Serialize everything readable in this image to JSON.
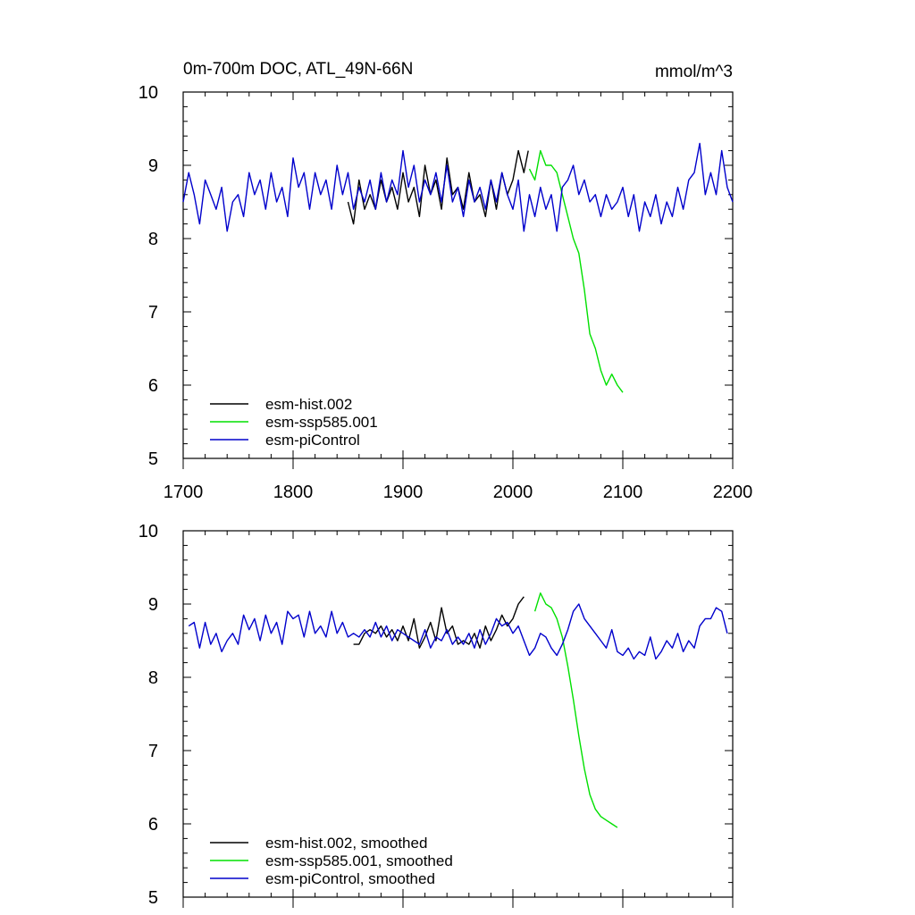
{
  "chart_data": [
    {
      "type": "line",
      "title": "0m-700m DOC, ATL_49N-66N",
      "units": "mmol/m^3",
      "xlim": [
        1700,
        2200
      ],
      "ylim": [
        5,
        10
      ],
      "xticks": [
        1700,
        1800,
        1900,
        2000,
        2100,
        2200
      ],
      "yticks": [
        5,
        6,
        7,
        8,
        9,
        10
      ],
      "x_tick_labels": [
        "1700",
        "1800",
        "1900",
        "2000",
        "2100",
        "2200"
      ],
      "y_tick_labels": [
        "5",
        "6",
        "7",
        "8",
        "9",
        "10"
      ],
      "legend_position": "bottom-left",
      "series": [
        {
          "name": "esm-hist.002",
          "color": "#000000",
          "x": [
            1850,
            1855,
            1860,
            1865,
            1870,
            1875,
            1880,
            1885,
            1890,
            1895,
            1900,
            1905,
            1910,
            1915,
            1920,
            1925,
            1930,
            1935,
            1940,
            1945,
            1950,
            1955,
            1960,
            1965,
            1970,
            1975,
            1980,
            1985,
            1990,
            1995,
            2000,
            2005,
            2010,
            2014
          ],
          "values": [
            8.5,
            8.2,
            8.8,
            8.4,
            8.6,
            8.4,
            8.8,
            8.5,
            8.7,
            8.4,
            8.9,
            8.5,
            8.7,
            8.3,
            9.0,
            8.6,
            8.8,
            8.4,
            9.1,
            8.6,
            8.7,
            8.4,
            8.9,
            8.5,
            8.6,
            8.3,
            8.8,
            8.4,
            8.9,
            8.6,
            8.8,
            9.2,
            8.9,
            9.2
          ]
        },
        {
          "name": "esm-ssp585.001",
          "color": "#00e000",
          "x": [
            2015,
            2020,
            2025,
            2030,
            2035,
            2040,
            2045,
            2050,
            2055,
            2060,
            2065,
            2070,
            2075,
            2080,
            2085,
            2090,
            2095,
            2100
          ],
          "values": [
            8.95,
            8.8,
            9.2,
            9.0,
            9.0,
            8.9,
            8.6,
            8.3,
            8.0,
            7.8,
            7.3,
            6.7,
            6.5,
            6.2,
            6.0,
            6.15,
            6.0,
            5.9
          ]
        },
        {
          "name": "esm-piControl",
          "color": "#0000cc",
          "x": [
            1700,
            1705,
            1710,
            1715,
            1720,
            1725,
            1730,
            1735,
            1740,
            1745,
            1750,
            1755,
            1760,
            1765,
            1770,
            1775,
            1780,
            1785,
            1790,
            1795,
            1800,
            1805,
            1810,
            1815,
            1820,
            1825,
            1830,
            1835,
            1840,
            1845,
            1850,
            1855,
            1860,
            1865,
            1870,
            1875,
            1880,
            1885,
            1890,
            1895,
            1900,
            1905,
            1910,
            1915,
            1920,
            1925,
            1930,
            1935,
            1940,
            1945,
            1950,
            1955,
            1960,
            1965,
            1970,
            1975,
            1980,
            1985,
            1990,
            1995,
            2000,
            2005,
            2010,
            2015,
            2020,
            2025,
            2030,
            2035,
            2040,
            2045,
            2050,
            2055,
            2060,
            2065,
            2070,
            2075,
            2080,
            2085,
            2090,
            2095,
            2100,
            2105,
            2110,
            2115,
            2120,
            2125,
            2130,
            2135,
            2140,
            2145,
            2150,
            2155,
            2160,
            2165,
            2170,
            2175,
            2180,
            2185,
            2190,
            2195,
            2200
          ],
          "values": [
            8.5,
            8.9,
            8.6,
            8.2,
            8.8,
            8.6,
            8.4,
            8.7,
            8.1,
            8.5,
            8.6,
            8.3,
            8.9,
            8.6,
            8.8,
            8.4,
            8.9,
            8.5,
            8.7,
            8.3,
            9.1,
            8.7,
            8.9,
            8.4,
            8.9,
            8.6,
            8.8,
            8.4,
            9.0,
            8.6,
            8.9,
            8.4,
            8.7,
            8.5,
            8.8,
            8.4,
            8.9,
            8.5,
            8.8,
            8.6,
            9.2,
            8.7,
            9.0,
            8.5,
            8.8,
            8.6,
            8.9,
            8.5,
            9.0,
            8.5,
            8.7,
            8.3,
            8.8,
            8.5,
            8.7,
            8.4,
            8.8,
            8.5,
            8.9,
            8.6,
            8.4,
            8.8,
            8.1,
            8.6,
            8.3,
            8.7,
            8.4,
            8.6,
            8.1,
            8.7,
            8.8,
            9.0,
            8.6,
            8.8,
            8.5,
            8.6,
            8.3,
            8.6,
            8.4,
            8.5,
            8.7,
            8.3,
            8.6,
            8.1,
            8.5,
            8.3,
            8.6,
            8.2,
            8.5,
            8.3,
            8.7,
            8.4,
            8.8,
            8.9,
            9.3,
            8.6,
            8.9,
            8.6,
            9.2,
            8.7,
            8.5
          ]
        }
      ]
    },
    {
      "type": "line",
      "xlim": [
        1700,
        2200
      ],
      "ylim": [
        5,
        10
      ],
      "xticks": [
        1700,
        1800,
        1900,
        2000,
        2100,
        2200
      ],
      "yticks": [
        5,
        6,
        7,
        8,
        9,
        10
      ],
      "y_tick_labels": [
        "5",
        "6",
        "7",
        "8",
        "9",
        "10"
      ],
      "legend_position": "bottom-left",
      "series": [
        {
          "name": "esm-hist.002, smoothed",
          "color": "#000000",
          "x": [
            1855,
            1860,
            1865,
            1870,
            1875,
            1880,
            1885,
            1890,
            1895,
            1900,
            1905,
            1910,
            1915,
            1920,
            1925,
            1930,
            1935,
            1940,
            1945,
            1950,
            1955,
            1960,
            1965,
            1970,
            1975,
            1980,
            1985,
            1990,
            1995,
            2000,
            2005,
            2010
          ],
          "values": [
            8.45,
            8.45,
            8.6,
            8.65,
            8.6,
            8.7,
            8.55,
            8.65,
            8.5,
            8.7,
            8.5,
            8.8,
            8.4,
            8.55,
            8.75,
            8.5,
            8.95,
            8.6,
            8.7,
            8.45,
            8.5,
            8.45,
            8.6,
            8.4,
            8.7,
            8.5,
            8.65,
            8.85,
            8.7,
            8.8,
            9.0,
            9.1
          ]
        },
        {
          "name": "esm-ssp585.001, smoothed",
          "color": "#00e000",
          "x": [
            2020,
            2025,
            2030,
            2035,
            2040,
            2045,
            2050,
            2055,
            2060,
            2065,
            2070,
            2075,
            2080,
            2085,
            2090,
            2095
          ],
          "values": [
            8.9,
            9.15,
            9.0,
            8.95,
            8.8,
            8.55,
            8.15,
            7.7,
            7.2,
            6.75,
            6.4,
            6.2,
            6.1,
            6.05,
            6.0,
            5.95
          ]
        },
        {
          "name": "esm-piControl, smoothed",
          "color": "#0000cc",
          "x": [
            1705,
            1710,
            1715,
            1720,
            1725,
            1730,
            1735,
            1740,
            1745,
            1750,
            1755,
            1760,
            1765,
            1770,
            1775,
            1780,
            1785,
            1790,
            1795,
            1800,
            1805,
            1810,
            1815,
            1820,
            1825,
            1830,
            1835,
            1840,
            1845,
            1850,
            1855,
            1860,
            1865,
            1870,
            1875,
            1880,
            1885,
            1890,
            1895,
            1900,
            1905,
            1910,
            1915,
            1920,
            1925,
            1930,
            1935,
            1940,
            1945,
            1950,
            1955,
            1960,
            1965,
            1970,
            1975,
            1980,
            1985,
            1990,
            1995,
            2000,
            2005,
            2010,
            2015,
            2020,
            2025,
            2030,
            2035,
            2040,
            2045,
            2050,
            2055,
            2060,
            2065,
            2070,
            2075,
            2080,
            2085,
            2090,
            2095,
            2100,
            2105,
            2110,
            2115,
            2120,
            2125,
            2130,
            2135,
            2140,
            2145,
            2150,
            2155,
            2160,
            2165,
            2170,
            2175,
            2180,
            2185,
            2190,
            2195
          ],
          "values": [
            8.7,
            8.75,
            8.4,
            8.75,
            8.45,
            8.6,
            8.35,
            8.5,
            8.6,
            8.45,
            8.85,
            8.65,
            8.8,
            8.5,
            8.85,
            8.6,
            8.75,
            8.45,
            8.9,
            8.8,
            8.85,
            8.55,
            8.9,
            8.6,
            8.7,
            8.55,
            8.9,
            8.6,
            8.75,
            8.55,
            8.6,
            8.55,
            8.65,
            8.55,
            8.75,
            8.55,
            8.7,
            8.5,
            8.65,
            8.6,
            8.55,
            8.5,
            8.45,
            8.65,
            8.4,
            8.55,
            8.5,
            8.65,
            8.45,
            8.55,
            8.45,
            8.6,
            8.4,
            8.65,
            8.45,
            8.6,
            8.8,
            8.7,
            8.75,
            8.6,
            8.7,
            8.5,
            8.3,
            8.4,
            8.6,
            8.55,
            8.4,
            8.3,
            8.45,
            8.65,
            8.9,
            9.0,
            8.8,
            8.7,
            8.6,
            8.5,
            8.4,
            8.65,
            8.35,
            8.3,
            8.4,
            8.25,
            8.35,
            8.3,
            8.55,
            8.25,
            8.35,
            8.5,
            8.4,
            8.6,
            8.35,
            8.5,
            8.4,
            8.7,
            8.8,
            8.8,
            8.95,
            8.9,
            8.6
          ]
        }
      ]
    }
  ]
}
